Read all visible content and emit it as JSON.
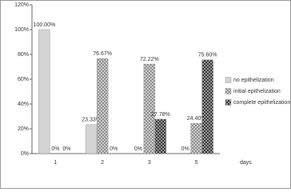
{
  "chart_data": {
    "type": "bar",
    "x_label": "days",
    "categories": [
      "1",
      "2",
      "3",
      "5"
    ],
    "series": [
      {
        "name": "no epithelization",
        "color": "#d4d4d4",
        "values": [
          100,
          23.33,
          0,
          0
        ],
        "value_labels": [
          "100.00%",
          "23.33%",
          "0%",
          "0%"
        ]
      },
      {
        "name": "initial epithelization",
        "color": "#8c8c8c",
        "values": [
          0,
          76.67,
          72.22,
          24.4
        ],
        "value_labels": [
          "0%",
          "76.67%",
          "72.22%",
          "24.40%"
        ]
      },
      {
        "name": "complete epithelization",
        "color": "#2e2e2e",
        "values": [
          0,
          0,
          27.78,
          75.6
        ],
        "value_labels": [
          "0%",
          "0%",
          "27.78%",
          "75.60%"
        ]
      }
    ],
    "ylim": [
      0,
      120
    ],
    "yticks": [
      {
        "value": 0,
        "label": "0%"
      },
      {
        "value": 20,
        "label": "20%"
      },
      {
        "value": 40,
        "label": "40%"
      },
      {
        "value": 60,
        "label": "60%"
      },
      {
        "value": 80,
        "label": "80%"
      },
      {
        "value": 100,
        "label": "100%"
      },
      {
        "value": 120,
        "label": "120%"
      }
    ],
    "grid": false
  }
}
